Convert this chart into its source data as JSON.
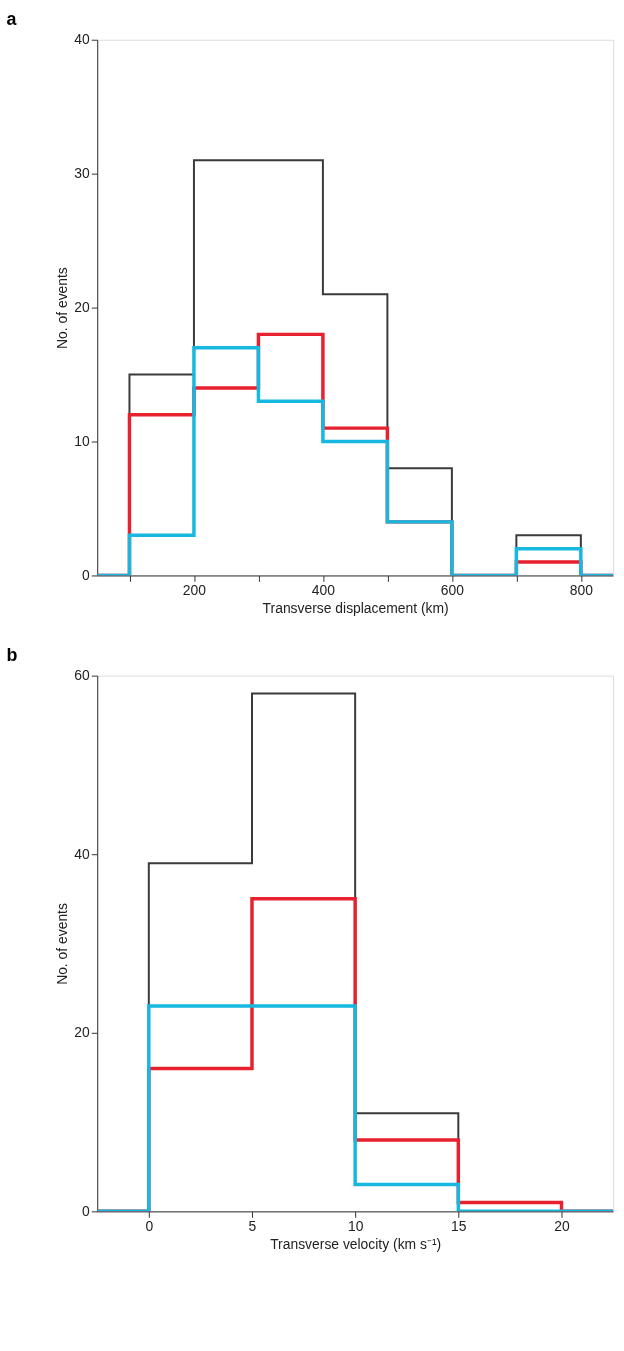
{
  "chart_data": [
    {
      "type": "histogram",
      "title": "a",
      "xlabel": "Transverse displacement (km)",
      "ylabel": "No. of events",
      "bins": [
        50,
        100,
        200,
        300,
        400,
        500,
        600,
        700,
        800,
        850
      ],
      "series": [
        {
          "color": "#3a3a3a",
          "values": [
            0,
            15,
            31,
            31,
            21,
            8,
            0,
            3,
            0
          ]
        },
        {
          "color": "#e8212e",
          "values": [
            0,
            12,
            14,
            18,
            11,
            4,
            0,
            1,
            0
          ]
        },
        {
          "color": "#16b8e0",
          "values": [
            0,
            3,
            17,
            13,
            10,
            4,
            0,
            2,
            0
          ]
        }
      ],
      "xlim": [
        50,
        850
      ],
      "xticks": [
        {
          "value": 100,
          "label": null
        },
        200,
        {
          "value": 300,
          "label": null
        },
        400,
        {
          "value": 500,
          "label": null
        },
        600,
        {
          "value": 700,
          "label": null
        },
        800
      ],
      "ylim": [
        0,
        40
      ],
      "yticks": [
        0,
        10,
        20,
        30,
        40
      ],
      "legend": false
    },
    {
      "type": "histogram",
      "title": "b",
      "xlabel": "Transverse velocity (km s⁻¹)",
      "ylabel": "No. of events",
      "bins": [
        -2.5,
        0,
        5,
        10,
        15,
        20,
        22.5
      ],
      "series": [
        {
          "color": "#3a3a3a",
          "values": [
            0,
            39,
            58,
            11,
            0,
            0
          ]
        },
        {
          "color": "#e8212e",
          "values": [
            0,
            16,
            35,
            8,
            1,
            0
          ]
        },
        {
          "color": "#16b8e0",
          "values": [
            0,
            23,
            23,
            3,
            0,
            0
          ]
        }
      ],
      "xlim": [
        -2.5,
        22.5
      ],
      "xticks": [
        0,
        5,
        10,
        15,
        20
      ],
      "ylim": [
        0,
        60
      ],
      "yticks": [
        0,
        20,
        40,
        60
      ],
      "legend": false
    }
  ]
}
